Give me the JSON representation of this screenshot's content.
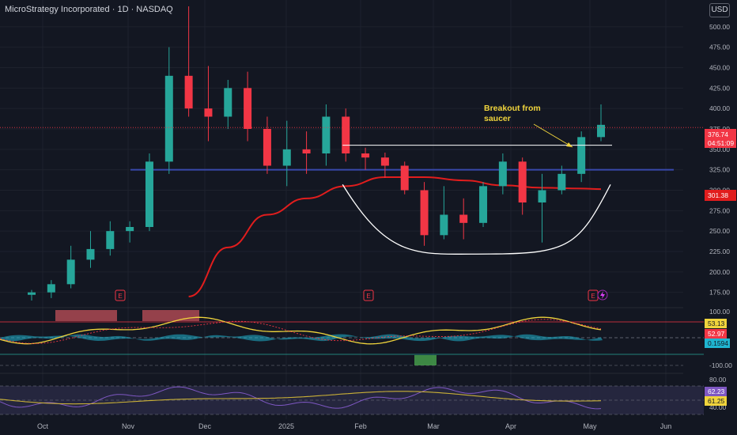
{
  "header": {
    "title": "MicroStrategy Incorporated · 1D · NASDAQ",
    "currency_button": "USD"
  },
  "colors": {
    "up": "#26a69a",
    "down": "#f23645",
    "background": "#131722",
    "ma": "#e11d1d",
    "saucer": "#ffffff",
    "support": "#3949ab",
    "annotation": "#f0d43c"
  },
  "icons": [
    "earnings-marker-icon",
    "lightning-icon",
    "arrow-icon"
  ],
  "chart_data": [
    {
      "type": "candlestick",
      "title": "MicroStrategy Incorporated · 1D · NASDAQ",
      "currency": "USD",
      "ylim": [
        165,
        525
      ],
      "y_ticks": [
        "500.00",
        "475.00",
        "450.00",
        "425.00",
        "400.00",
        "375.00",
        "350.00",
        "325.00",
        "300.00",
        "275.00",
        "250.00",
        "225.00",
        "200.00",
        "175.00"
      ],
      "x_ticks": [
        "Oct",
        "Nov",
        "Dec",
        "2025",
        "Feb",
        "Mar",
        "Apr",
        "May",
        "Jun"
      ],
      "last_price": "376.74",
      "countdown": "04:51:09",
      "ma_price": "301.38",
      "annotation": [
        "Breakout from",
        "saucer"
      ],
      "ohlc_weekly_approx": [
        {
          "period": "Sep W4",
          "open": 172,
          "high": 178,
          "low": 165,
          "close": 175
        },
        {
          "period": "Oct W1",
          "open": 175,
          "high": 190,
          "low": 168,
          "close": 185
        },
        {
          "period": "Oct W2",
          "open": 185,
          "high": 232,
          "low": 180,
          "close": 215
        },
        {
          "period": "Oct W3",
          "open": 215,
          "high": 250,
          "low": 205,
          "close": 228
        },
        {
          "period": "Oct W4",
          "open": 228,
          "high": 262,
          "low": 220,
          "close": 250
        },
        {
          "period": "Nov W1",
          "open": 250,
          "high": 262,
          "low": 236,
          "close": 255
        },
        {
          "period": "Nov W2",
          "open": 255,
          "high": 345,
          "low": 250,
          "close": 335
        },
        {
          "period": "Nov W3",
          "open": 335,
          "high": 475,
          "low": 320,
          "close": 440
        },
        {
          "period": "Nov W4",
          "open": 440,
          "high": 525,
          "low": 390,
          "close": 400
        },
        {
          "period": "Dec W1",
          "open": 400,
          "high": 452,
          "low": 360,
          "close": 390
        },
        {
          "period": "Dec W2",
          "open": 390,
          "high": 435,
          "low": 375,
          "close": 425
        },
        {
          "period": "Dec W3",
          "open": 425,
          "high": 445,
          "low": 360,
          "close": 375
        },
        {
          "period": "Dec W4",
          "open": 375,
          "high": 390,
          "low": 320,
          "close": 330
        },
        {
          "period": "Jan W1",
          "open": 330,
          "high": 385,
          "low": 305,
          "close": 350
        },
        {
          "period": "Jan W2",
          "open": 350,
          "high": 372,
          "low": 320,
          "close": 345
        },
        {
          "period": "Jan W3",
          "open": 345,
          "high": 405,
          "low": 330,
          "close": 390
        },
        {
          "period": "Jan W4",
          "open": 390,
          "high": 400,
          "low": 335,
          "close": 345
        },
        {
          "period": "Feb W1",
          "open": 345,
          "high": 352,
          "low": 325,
          "close": 340
        },
        {
          "period": "Feb W2",
          "open": 340,
          "high": 346,
          "low": 315,
          "close": 330
        },
        {
          "period": "Feb W3",
          "open": 330,
          "high": 335,
          "low": 295,
          "close": 300
        },
        {
          "period": "Feb W4",
          "open": 300,
          "high": 310,
          "low": 232,
          "close": 245
        },
        {
          "period": "Mar W1",
          "open": 245,
          "high": 305,
          "low": 240,
          "close": 270
        },
        {
          "period": "Mar W2",
          "open": 270,
          "high": 290,
          "low": 240,
          "close": 260
        },
        {
          "period": "Mar W3",
          "open": 260,
          "high": 310,
          "low": 255,
          "close": 305
        },
        {
          "period": "Mar W4",
          "open": 305,
          "high": 345,
          "low": 295,
          "close": 335
        },
        {
          "period": "Apr W1",
          "open": 335,
          "high": 340,
          "low": 270,
          "close": 285
        },
        {
          "period": "Apr W2",
          "open": 285,
          "high": 320,
          "low": 236,
          "close": 300
        },
        {
          "period": "Apr W3",
          "open": 300,
          "high": 330,
          "low": 295,
          "close": 320
        },
        {
          "period": "Apr W4",
          "open": 320,
          "high": 372,
          "low": 310,
          "close": 365
        },
        {
          "period": "May W1",
          "open": 365,
          "high": 405,
          "low": 360,
          "close": 380
        }
      ],
      "moving_average_approx": [
        {
          "period": "Nov W4",
          "value": 170
        },
        {
          "period": "Dec W2",
          "value": 230
        },
        {
          "period": "Dec W4",
          "value": 270
        },
        {
          "period": "Jan W2",
          "value": 290
        },
        {
          "period": "Jan W4",
          "value": 305
        },
        {
          "period": "Feb W2",
          "value": 316
        },
        {
          "period": "Feb W4",
          "value": 316
        },
        {
          "period": "Mar W2",
          "value": 312
        },
        {
          "period": "Mar W4",
          "value": 306
        },
        {
          "period": "Apr W2",
          "value": 303
        },
        {
          "period": "Apr W4",
          "value": 302
        },
        {
          "period": "May W1",
          "value": 301.38
        }
      ],
      "horizontal_lines": [
        {
          "name": "neckline",
          "value": 355
        },
        {
          "name": "support",
          "value": 325
        }
      ],
      "saucer_arc": {
        "start": {
          "period": "Jan W4",
          "value": 307
        },
        "bottom": {
          "period": "Mar W3",
          "value": 222
        },
        "end": {
          "period": "May W1",
          "value": 307
        }
      }
    },
    {
      "type": "line",
      "name": "oscillator",
      "y_ticks": [
        "100.00",
        "-100.00"
      ],
      "labels": [
        "53.13",
        "52.97",
        "0.1594"
      ],
      "levels": [
        100,
        0,
        -100
      ]
    },
    {
      "type": "line",
      "name": "rsi",
      "y_ticks": [
        "80.00",
        "40.00"
      ],
      "labels": [
        "62.23",
        "61.25"
      ],
      "levels": [
        80,
        40
      ]
    }
  ]
}
